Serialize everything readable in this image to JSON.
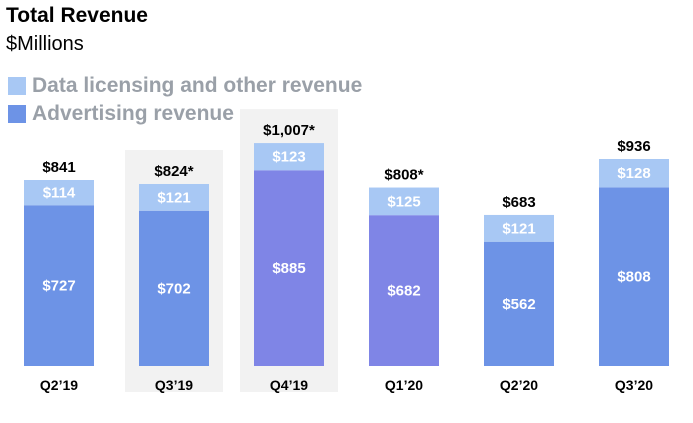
{
  "chart_data": {
    "type": "bar",
    "stacked": true,
    "title": "Total Revenue",
    "subtitle": "$Millions",
    "categories": [
      "Q2’19",
      "Q3’19",
      "Q4’19",
      "Q1’20",
      "Q2’20",
      "Q3’20"
    ],
    "series": [
      {
        "name": "Advertising revenue",
        "values": [
          727,
          702,
          885,
          682,
          562,
          808
        ],
        "labels": [
          "$727",
          "$702",
          "$885",
          "$682",
          "$562",
          "$808"
        ],
        "color": "#6d93e6"
      },
      {
        "name": "Data licensing and other revenue",
        "values": [
          114,
          121,
          123,
          125,
          121,
          128
        ],
        "labels": [
          "$114",
          "$121",
          "$123",
          "$125",
          "$121",
          "$128"
        ],
        "color": "#a8c8f4"
      }
    ],
    "totals": [
      841,
      824,
      1007,
      808,
      683,
      936
    ],
    "total_labels": [
      "$841",
      "$824*",
      "$1,007*",
      "$808*",
      "$683",
      "$936"
    ],
    "legend_order": [
      "Data licensing and other revenue",
      "Advertising revenue"
    ],
    "legend_position": "top-left",
    "highlight_colors": [
      "",
      "",
      "#7f85e6",
      "#7f85e6",
      "",
      ""
    ],
    "ylim": [
      0,
      1040
    ],
    "grid": false
  }
}
